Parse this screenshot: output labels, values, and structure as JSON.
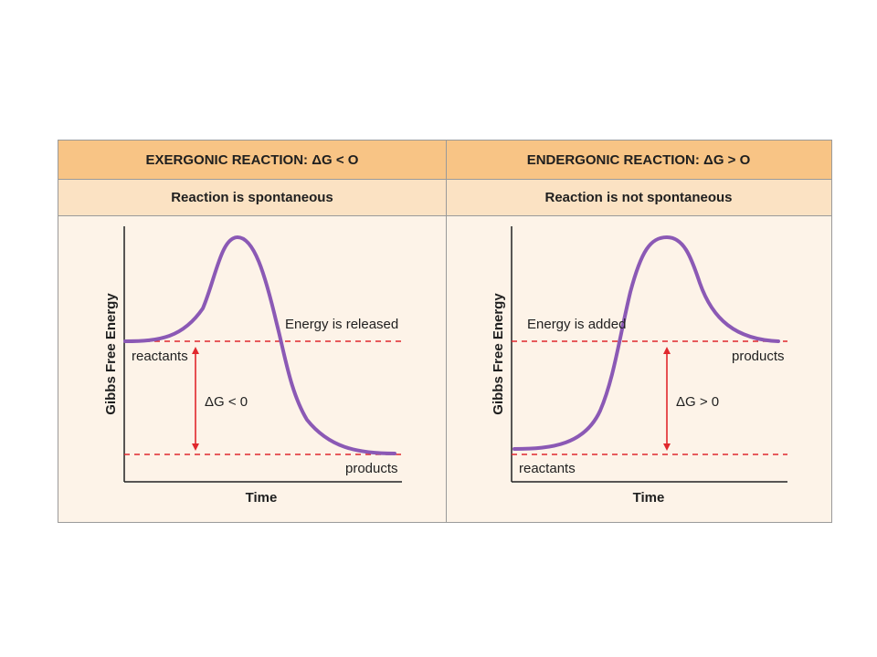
{
  "panels": [
    {
      "header": "EXERGONIC REACTION: ΔG < O",
      "subheader": "Reaction is spontaneous",
      "ylabel": "Gibbs Free Energy",
      "xlabel": "Time",
      "energy_note": "Energy is released",
      "reactants_label": "reactants",
      "products_label": "products",
      "delta_label": "ΔG < 0"
    },
    {
      "header": "ENDERGONIC REACTION: ΔG > O",
      "subheader": "Reaction is not spontaneous",
      "ylabel": "Gibbs Free Energy",
      "xlabel": "Time",
      "energy_note": "Energy is added",
      "reactants_label": "reactants",
      "products_label": "products",
      "delta_label": "ΔG > 0"
    }
  ],
  "colors": {
    "header_bg": "#f8c485",
    "subheader_bg": "#fbe2c3",
    "panel_bg": "#fdf3e8",
    "curve": "#8b59b5",
    "level_lines": "#e0282d",
    "arrow": "#e0282d"
  }
}
